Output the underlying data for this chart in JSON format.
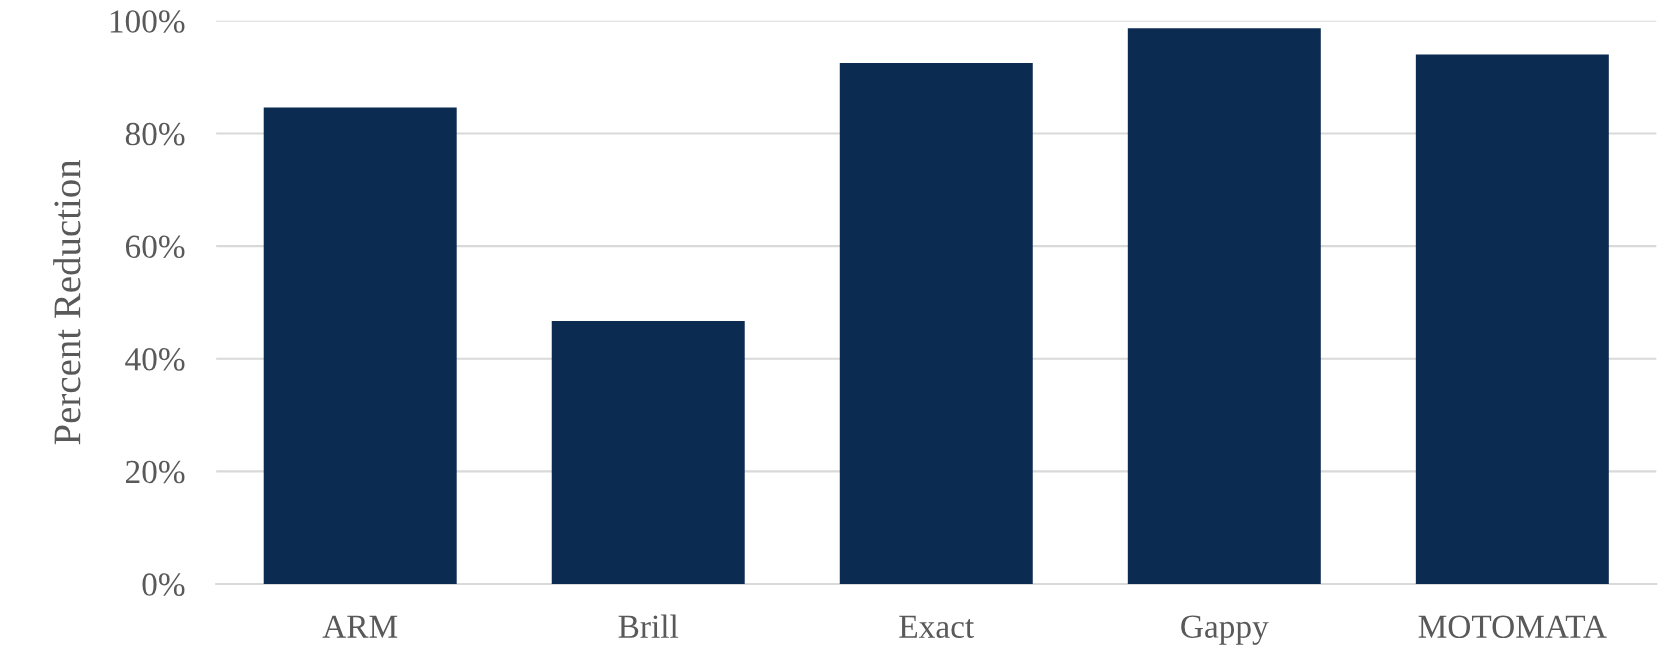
{
  "chart_data": {
    "type": "bar",
    "ylabel": "Percent Reduction",
    "categories": [
      "ARM",
      "Brill",
      "Exact",
      "Gappy",
      "MOTOMATA"
    ],
    "values": [
      84.6,
      46.7,
      92.5,
      98.7,
      94.0
    ],
    "color": "#0b2b50",
    "ylim": [
      0,
      100
    ],
    "yticks": [
      {
        "value": 0,
        "label": "0%"
      },
      {
        "value": 20,
        "label": "20%"
      },
      {
        "value": 40,
        "label": "40%"
      },
      {
        "value": 60,
        "label": "60%"
      },
      {
        "value": 80,
        "label": "80%"
      },
      {
        "value": 100,
        "label": "100%"
      }
    ],
    "grid": "y"
  }
}
